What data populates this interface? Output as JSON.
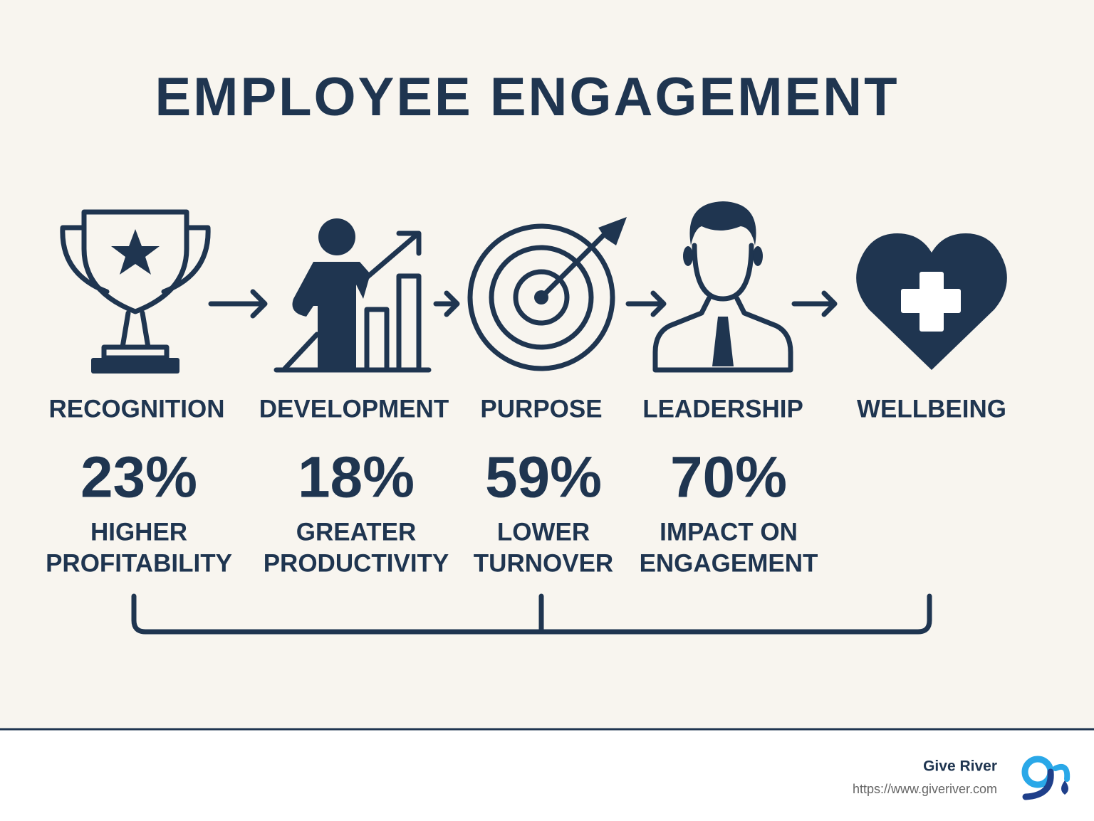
{
  "title": "EMPLOYEE ENGAGEMENT",
  "pillars": [
    {
      "label": "RECOGNITION",
      "stat": "23%",
      "caption": [
        "HIGHER",
        "PROFITABILITY"
      ]
    },
    {
      "label": "DEVELOPMENT",
      "stat": "18%",
      "caption": [
        "GREATER",
        "PRODUCTIVITY"
      ]
    },
    {
      "label": "PURPOSE",
      "stat": "59%",
      "caption": [
        "LOWER",
        "TURNOVER"
      ]
    },
    {
      "label": "LEADERSHIP",
      "stat": "70%",
      "caption": [
        "IMPACT ON",
        "ENGAGEMENT"
      ]
    },
    {
      "label": "WELLBEING"
    }
  ],
  "footer": {
    "brand": "Give River",
    "url": "https://www.giveriver.com"
  }
}
